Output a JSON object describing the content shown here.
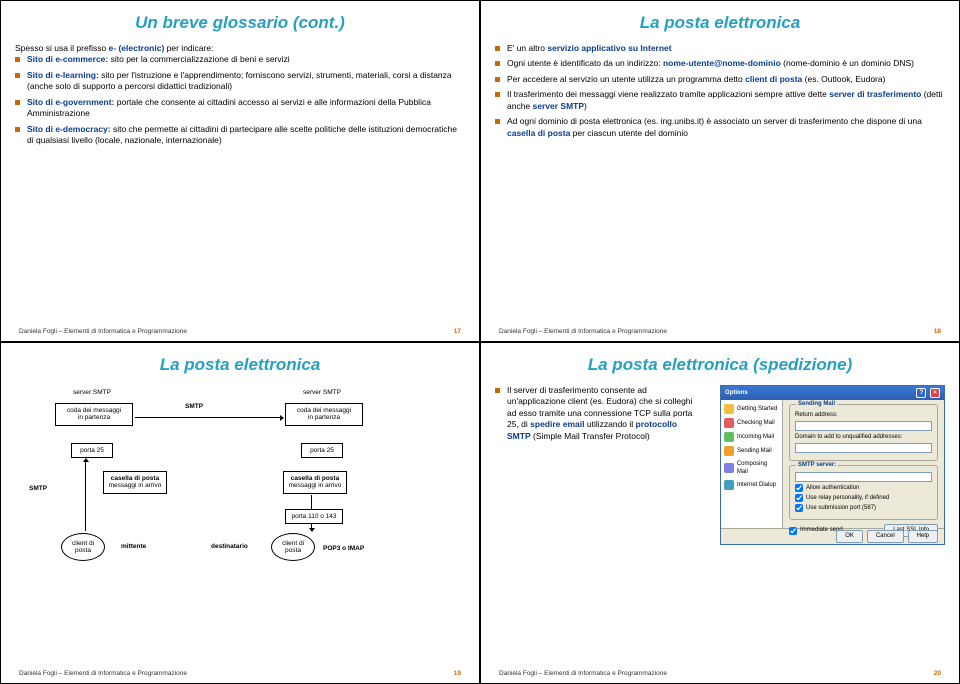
{
  "footer_text": "Daniela Fogli – Elementi di Informatica e Programmazione",
  "slide1": {
    "title": "Un breve glossario (cont.)",
    "intro": "Spesso si usa il prefisso ",
    "intro_term": "e- (electronic)",
    "intro_tail": " per indicare:",
    "items": [
      {
        "term": "Sito di e-commerce:",
        "text": " sito per la commercializzazione di beni e servizi"
      },
      {
        "term": "Sito di e-learning:",
        "text": " sito per l'istruzione e l'apprendimento; forniscono servizi, strumenti, materiali, corsi a distanza (anche solo di supporto a percorsi didattici tradizionali)"
      },
      {
        "term": "Sito di e-government:",
        "text": " portale che consente ai cittadini accesso ai servizi e alle informazioni della Pubblica Amministrazione"
      },
      {
        "term": "Sito di e-democracy:",
        "text": " sito che permette ai cittadini di partecipare alle scelte politiche delle istituzioni democratiche di qualsiasi livello (locale, nazionale, internazionale)"
      }
    ],
    "page": "17"
  },
  "slide2": {
    "title": "La posta elettronica",
    "items": [
      {
        "pre": "E' un altro ",
        "term": "servizio applicativo su Internet",
        "post": ""
      },
      {
        "pre": "Ogni utente è identificato da un indirizzo:\n ",
        "term": "nome-utente@nome-dominio",
        "post": "   (nome-dominio è un dominio DNS)"
      },
      {
        "pre": "Per accedere al servizio un utente utilizza un programma detto ",
        "term": "client di posta",
        "post": " (es. Outlook, Eudora)"
      },
      {
        "pre": "Il trasferimento dei messaggi viene realizzato tramite applicazioni sempre attive dette ",
        "term": "server di trasferimento",
        "post": " (detti anche ",
        "term2": "server SMTP",
        "post2": ")"
      },
      {
        "pre": "Ad ogni dominio di posta elettronica (es. ing.unibs.it) è associato un server di trasferimento che dispone di una ",
        "term": "casella di posta",
        "post": " per ciascun utente del dominio"
      }
    ],
    "page": "18"
  },
  "slide3": {
    "title": "La posta elettronica",
    "labels": {
      "server_smtp": "server SMTP",
      "coda_partenza": "coda dei messaggi\nin partenza",
      "porta25": "porta 25",
      "casella": "casella di posta",
      "msg_arrivo": "messaggi in arrivo",
      "smtp": "SMTP",
      "client": "client di\nposta",
      "mittente": "mittente",
      "destinatario": "destinatario",
      "porta110": "porta 110 o 143",
      "pop": "POP3 o IMAP"
    },
    "page": "19"
  },
  "slide4": {
    "title": "La posta elettronica (spedizione)",
    "bullet_pre": "Il server di trasferimento consente ad un'applicazione client (es. Eudora) che si colleghi ad esso tramite una connessione TCP sulla porta 25, di ",
    "bullet_term1": "spedire email",
    "bullet_mid": " utilizzando il ",
    "bullet_term2": "protocollo SMTP",
    "bullet_post": " (Simple Mail Transfer Protocol)",
    "window": {
      "title": "Options",
      "categories": [
        {
          "label": "Getting Started",
          "color": "#f0c040"
        },
        {
          "label": "Checking Mail",
          "color": "#e06060"
        },
        {
          "label": "Incoming Mail",
          "color": "#60c060"
        },
        {
          "label": "Sending Mail",
          "color": "#f0a030"
        },
        {
          "label": "Composing Mail",
          "color": "#8080e0"
        },
        {
          "label": "Internet Dialup",
          "color": "#40a0c0"
        }
      ],
      "group1_label": "Sending Mail",
      "g1_rows": [
        "Return address:",
        "Domain to add to unqualified addresses:"
      ],
      "group2_label": "SMTP server:",
      "smtp_value": "",
      "g2_checks": [
        "Allow authentication",
        "Use relay personality, if defined",
        "Use submission port (587)"
      ],
      "immediate": "Immediate send",
      "btn_last": "Last SSL Info",
      "btn_ok": "OK",
      "btn_cancel": "Cancel",
      "btn_help": "Help"
    },
    "page": "20"
  }
}
